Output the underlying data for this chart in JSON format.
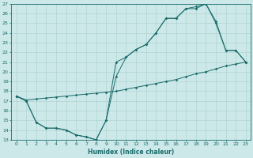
{
  "xlabel": "Humidex (Indice chaleur)",
  "bg_color": "#cce8e8",
  "grid_color": "#aacece",
  "line_color": "#1a6b6b",
  "xlim": [
    -0.5,
    23.5
  ],
  "ylim": [
    13,
    27
  ],
  "line1_x": [
    0,
    1,
    2,
    3,
    4,
    5,
    6,
    7,
    8,
    9,
    10,
    11,
    12,
    13,
    14,
    15,
    16,
    17,
    18,
    19,
    20,
    21,
    22,
    23
  ],
  "line1_y": [
    17.5,
    17.1,
    17.2,
    17.3,
    17.4,
    17.5,
    17.6,
    17.7,
    17.8,
    17.9,
    18.0,
    18.2,
    18.4,
    18.6,
    18.8,
    19.0,
    19.2,
    19.5,
    19.8,
    20.0,
    20.3,
    20.6,
    20.8,
    21.0
  ],
  "line2_x": [
    0,
    1,
    2,
    3,
    4,
    5,
    6,
    7,
    8,
    9,
    10,
    11,
    12,
    13,
    14,
    15,
    16,
    17,
    18,
    19,
    20,
    21,
    22,
    23
  ],
  "line2_y": [
    17.5,
    17.0,
    14.8,
    14.2,
    14.2,
    14.0,
    13.5,
    13.3,
    13.0,
    15.0,
    21.0,
    21.5,
    22.3,
    22.8,
    24.0,
    25.5,
    25.5,
    26.5,
    26.5,
    27.0,
    25.0,
    22.2,
    22.2,
    21.0
  ],
  "line3_x": [
    0,
    1,
    2,
    3,
    4,
    5,
    6,
    7,
    8,
    9,
    10,
    11,
    12,
    13,
    14,
    15,
    16,
    17,
    18,
    19,
    20,
    21,
    22,
    23
  ],
  "line3_y": [
    17.5,
    17.0,
    14.8,
    14.2,
    14.2,
    14.0,
    13.5,
    13.3,
    13.0,
    15.0,
    19.5,
    21.5,
    22.3,
    22.8,
    24.0,
    25.5,
    25.5,
    26.5,
    26.7,
    27.0,
    25.2,
    22.2,
    22.2,
    21.0
  ]
}
